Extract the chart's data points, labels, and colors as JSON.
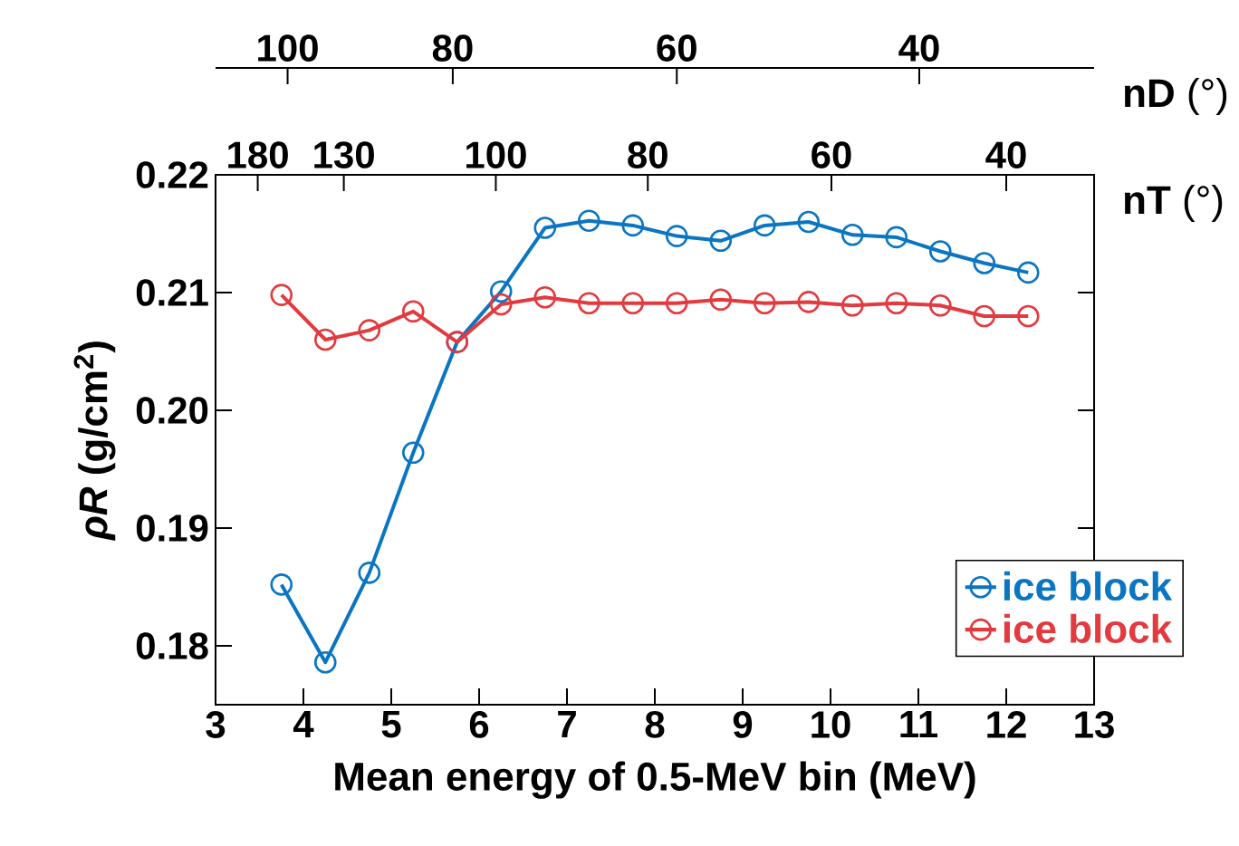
{
  "chart_data": {
    "type": "line",
    "xlabel": "Mean energy of 0.5-MeV bin (MeV)",
    "ylabel": "*ρR* (g/cm$^{2}$)",
    "x": [
      3.75,
      4.25,
      4.75,
      5.25,
      5.75,
      6.25,
      6.75,
      7.25,
      7.75,
      8.25,
      8.75,
      9.25,
      9.75,
      10.25,
      10.75,
      11.25,
      11.75,
      12.25
    ],
    "series": [
      {
        "name": "ice block",
        "color": "#0a75c2",
        "values": [
          0.1852,
          0.1786,
          0.1862,
          0.1964,
          0.2058,
          0.2101,
          0.2155,
          0.2161,
          0.2157,
          0.2148,
          0.2144,
          0.2157,
          0.216,
          0.2149,
          0.2147,
          0.2135,
          0.2125,
          0.2117
        ]
      },
      {
        "name": "ice block",
        "color": "#e23a3f",
        "values": [
          0.2098,
          0.206,
          0.2068,
          0.2084,
          0.2058,
          0.209,
          0.2096,
          0.2091,
          0.2091,
          0.2091,
          0.2094,
          0.2091,
          0.2092,
          0.2089,
          0.2091,
          0.2089,
          0.208,
          0.208
        ]
      }
    ],
    "xlim": [
      3,
      13
    ],
    "xticks": [
      3,
      4,
      5,
      6,
      7,
      8,
      9,
      10,
      11,
      12,
      13
    ],
    "ylim": [
      0.175,
      0.22
    ],
    "yticks": [
      {
        "value": 0.18,
        "label": "0.18"
      },
      {
        "value": 0.19,
        "label": "0.19"
      },
      {
        "value": 0.2,
        "label": "0.20"
      },
      {
        "value": 0.21,
        "label": "0.21"
      },
      {
        "value": 0.22,
        "label": "0.22"
      }
    ],
    "x2label": "**nT** (°)",
    "annotations": [
      "180",
      "130",
      "100",
      "80",
      "60",
      "40",
      "**nD** (°)",
      "100",
      "80",
      "60",
      "40"
    ],
    "marker": "circle",
    "line_style": "solid",
    "legend": "bottom right"
  }
}
